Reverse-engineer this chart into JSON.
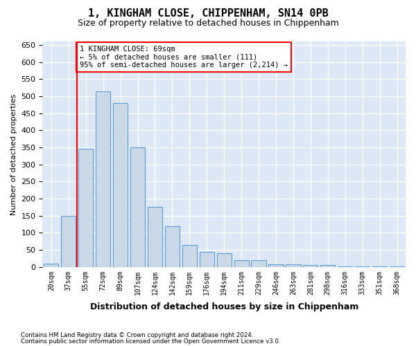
{
  "title": "1, KINGHAM CLOSE, CHIPPENHAM, SN14 0PB",
  "subtitle": "Size of property relative to detached houses in Chippenham",
  "xlabel": "Distribution of detached houses by size in Chippenham",
  "ylabel": "Number of detached properties",
  "bar_color": "#c9d9e8",
  "bar_edge_color": "#5b9bd5",
  "background_color": "#dce8f5",
  "grid_color": "#ffffff",
  "categories": [
    "20sqm",
    "37sqm",
    "55sqm",
    "72sqm",
    "89sqm",
    "107sqm",
    "124sqm",
    "142sqm",
    "159sqm",
    "176sqm",
    "194sqm",
    "211sqm",
    "229sqm",
    "246sqm",
    "263sqm",
    "281sqm",
    "298sqm",
    "316sqm",
    "333sqm",
    "351sqm",
    "368sqm"
  ],
  "values": [
    10,
    150,
    345,
    515,
    480,
    350,
    175,
    120,
    65,
    45,
    40,
    20,
    20,
    8,
    8,
    5,
    5,
    2,
    2,
    2,
    1
  ],
  "ylim": [
    0,
    660
  ],
  "yticks": [
    0,
    50,
    100,
    150,
    200,
    250,
    300,
    350,
    400,
    450,
    500,
    550,
    600,
    650
  ],
  "property_line_x": 1.5,
  "annotation_text": "1 KINGHAM CLOSE: 69sqm\n← 5% of detached houses are smaller (111)\n95% of semi-detached houses are larger (2,214) →",
  "footnote1": "Contains HM Land Registry data © Crown copyright and database right 2024.",
  "footnote2": "Contains public sector information licensed under the Open Government Licence v3.0."
}
